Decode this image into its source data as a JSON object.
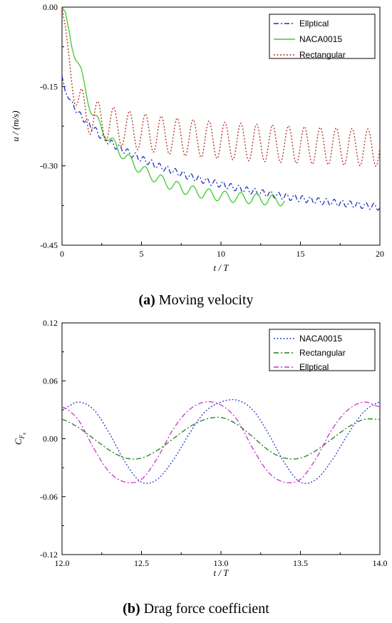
{
  "captions": {
    "a_tag": "(a)",
    "a_text": " Moving velocity",
    "b_tag": "(b)",
    "b_text": " Drag force coefficient"
  },
  "chart_data": [
    {
      "type": "line",
      "xlabel": "t / T",
      "ylabel": "u / (m/s)",
      "xlim": [
        0,
        20
      ],
      "ylim": [
        -0.45,
        0.0
      ],
      "xticks": [
        "0",
        "5",
        "10",
        "15",
        "20"
      ],
      "yticks": [
        "0.00",
        "-0.15",
        "-0.30",
        "-0.45"
      ],
      "grid": false,
      "legend_position": "top-right",
      "series": [
        {
          "name": "Ellptical",
          "color": "#1f2fb8",
          "dash": "dashdot",
          "x": [
            0.0,
            0.2,
            0.4,
            0.6,
            0.8,
            1.0,
            1.5,
            2.0,
            2.5,
            3.0,
            3.5,
            4.0,
            4.5,
            5.0,
            5.5,
            6.0,
            6.5,
            7.0,
            7.5,
            8.0,
            8.5,
            9.0,
            9.5,
            10.0,
            11.0,
            12.0,
            13.0,
            14.0,
            15.0,
            16.0,
            17.0,
            18.0,
            19.0,
            20.0
          ],
          "y": [
            -0.13,
            -0.16,
            -0.17,
            -0.18,
            -0.19,
            -0.2,
            -0.215,
            -0.23,
            -0.245,
            -0.255,
            -0.265,
            -0.272,
            -0.28,
            -0.287,
            -0.293,
            -0.3,
            -0.305,
            -0.31,
            -0.315,
            -0.32,
            -0.324,
            -0.328,
            -0.332,
            -0.335,
            -0.342,
            -0.348,
            -0.353,
            -0.358,
            -0.362,
            -0.366,
            -0.369,
            -0.372,
            -0.375,
            -0.378
          ],
          "osc_amplitude": 0.006,
          "osc_period": 0.5
        },
        {
          "name": "NACA0015",
          "color": "#3bcc2a",
          "dash": "solid",
          "x": [
            0.0,
            0.2,
            0.4,
            0.6,
            0.8,
            1.0,
            1.2,
            1.5,
            1.8,
            2.0,
            2.5,
            3.0,
            3.5,
            4.0,
            4.5,
            5.0,
            5.5,
            6.0,
            6.5,
            7.0,
            7.5,
            8.0,
            8.5,
            9.0,
            9.5,
            10.0,
            11.0,
            12.0,
            13.0,
            14.0
          ],
          "y": [
            0.0,
            -0.01,
            -0.04,
            -0.07,
            -0.09,
            -0.105,
            -0.125,
            -0.16,
            -0.19,
            -0.205,
            -0.23,
            -0.25,
            -0.268,
            -0.283,
            -0.296,
            -0.307,
            -0.316,
            -0.324,
            -0.331,
            -0.337,
            -0.342,
            -0.346,
            -0.35,
            -0.352,
            -0.355,
            -0.357,
            -0.36,
            -0.362,
            -0.364,
            -0.366
          ],
          "osc_amplitude": 0.01,
          "osc_period": 1.0
        },
        {
          "name": "Rectangular",
          "color": "#b22a1a",
          "dash": "dotted",
          "x": [
            0.0,
            0.2,
            0.4,
            0.6,
            0.8,
            1.0,
            1.5,
            2.0,
            3.0,
            4.0,
            5.0,
            6.0,
            7.0,
            8.0,
            10.0,
            12.0,
            14.0,
            16.0,
            18.0,
            20.0
          ],
          "y": [
            0.0,
            -0.04,
            -0.09,
            -0.13,
            -0.16,
            -0.18,
            -0.2,
            -0.21,
            -0.222,
            -0.23,
            -0.236,
            -0.24,
            -0.244,
            -0.247,
            -0.252,
            -0.256,
            -0.259,
            -0.262,
            -0.264,
            -0.266
          ],
          "osc_amplitude": 0.035,
          "osc_period": 1.0
        }
      ]
    },
    {
      "type": "line",
      "xlabel": "t / T",
      "ylabel": "C_Fx",
      "xlim": [
        12.0,
        14.0
      ],
      "ylim": [
        -0.12,
        0.12
      ],
      "xticks": [
        "12.0",
        "12.5",
        "13.0",
        "13.5",
        "14.0"
      ],
      "yticks": [
        "0.12",
        "0.06",
        "0.00",
        "-0.06",
        "-0.12"
      ],
      "grid": false,
      "legend_position": "top-right",
      "series": [
        {
          "name": "NACA0015",
          "color": "#2a3ac8",
          "dash": "dotted",
          "x": [
            12.0,
            12.1,
            12.2,
            12.3,
            12.4,
            12.5,
            12.6,
            12.7,
            12.8,
            12.9,
            13.0,
            13.1,
            13.2,
            13.3,
            13.4,
            13.5,
            13.6,
            13.7,
            13.8,
            13.9,
            14.0
          ],
          "y": [
            0.03,
            0.038,
            0.03,
            0.005,
            -0.025,
            -0.045,
            -0.042,
            -0.022,
            0.005,
            0.028,
            0.038,
            0.04,
            0.03,
            0.005,
            -0.025,
            -0.045,
            -0.042,
            -0.022,
            0.005,
            0.028,
            0.038
          ]
        },
        {
          "name": "Rectangular",
          "color": "#1f7f1f",
          "dash": "dashdot",
          "x": [
            12.0,
            12.1,
            12.2,
            12.3,
            12.4,
            12.5,
            12.6,
            12.7,
            12.8,
            12.9,
            13.0,
            13.1,
            13.2,
            13.3,
            13.4,
            13.5,
            13.6,
            13.7,
            13.8,
            13.9,
            14.0
          ],
          "y": [
            0.02,
            0.012,
            0.0,
            -0.012,
            -0.02,
            -0.02,
            -0.012,
            0.0,
            0.012,
            0.02,
            0.022,
            0.015,
            0.002,
            -0.012,
            -0.02,
            -0.02,
            -0.012,
            0.0,
            0.012,
            0.02,
            0.02
          ]
        },
        {
          "name": "Ellptical",
          "color": "#cc33cc",
          "dash": "dashdot",
          "x": [
            12.0,
            12.1,
            12.2,
            12.3,
            12.4,
            12.5,
            12.6,
            12.7,
            12.8,
            12.9,
            13.0,
            13.1,
            13.2,
            13.3,
            13.4,
            13.5,
            13.6,
            13.7,
            13.8,
            13.9,
            14.0
          ],
          "y": [
            0.033,
            0.02,
            -0.01,
            -0.035,
            -0.045,
            -0.042,
            -0.02,
            0.01,
            0.03,
            0.038,
            0.035,
            0.02,
            -0.01,
            -0.035,
            -0.045,
            -0.042,
            -0.02,
            0.01,
            0.03,
            0.038,
            0.033
          ]
        }
      ]
    }
  ]
}
